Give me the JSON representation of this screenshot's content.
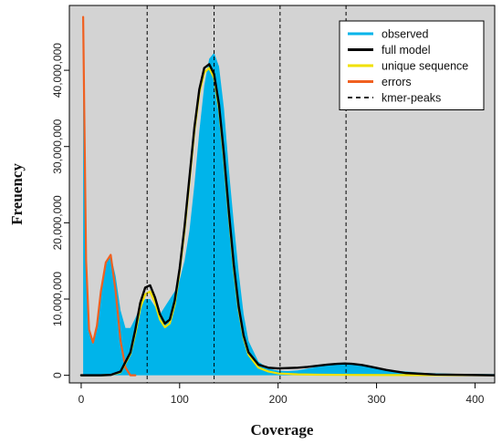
{
  "chart_data": {
    "type": "area",
    "title": "",
    "xlabel": "Coverage",
    "ylabel": "Freuency",
    "xlim": [
      -12,
      420
    ],
    "ylim": [
      -1000000,
      48500000
    ],
    "x_ticks": [
      0,
      100,
      200,
      300,
      400
    ],
    "x_tick_labels": [
      "0",
      "100",
      "200",
      "300",
      "400"
    ],
    "y_ticks": [
      0,
      10000000,
      20000000,
      30000000,
      40000000
    ],
    "y_tick_labels": [
      "0",
      "10,000,000",
      "20,000,000",
      "30,000,000",
      "40,000,000"
    ],
    "background_color": "#d3d3d3",
    "grid": false,
    "legend_position": "top-right",
    "kmer_peaks": [
      67,
      135,
      202,
      269
    ],
    "series": [
      {
        "name": "observed",
        "kind": "area",
        "color": "#00b4ea",
        "x": [
          2,
          3,
          5,
          8,
          12,
          16,
          20,
          25,
          30,
          35,
          40,
          45,
          50,
          55,
          60,
          65,
          70,
          75,
          80,
          85,
          90,
          95,
          100,
          105,
          110,
          115,
          120,
          125,
          130,
          135,
          140,
          145,
          150,
          155,
          160,
          165,
          170,
          180,
          190,
          200,
          210,
          220,
          240,
          260,
          270,
          280,
          300,
          320,
          350,
          380,
          420
        ],
        "y": [
          47000000,
          32000000,
          14000000,
          6000000,
          4400000,
          6500000,
          11000000,
          14500000,
          15800000,
          13000000,
          8500000,
          6200000,
          6200000,
          7500000,
          9000000,
          10000000,
          10000000,
          9000000,
          8000000,
          9000000,
          10000000,
          11000000,
          12500000,
          15000000,
          19000000,
          25000000,
          32000000,
          38000000,
          41500000,
          42300000,
          40500000,
          35000000,
          27000000,
          20000000,
          13500000,
          8000000,
          4500000,
          1800000,
          900000,
          600000,
          550000,
          650000,
          1100000,
          1450000,
          1500000,
          1400000,
          1000000,
          600000,
          300000,
          200000,
          150000
        ]
      },
      {
        "name": "full model",
        "kind": "line",
        "color": "#000000",
        "x": [
          0,
          20,
          30,
          40,
          50,
          55,
          60,
          65,
          70,
          75,
          80,
          85,
          90,
          95,
          100,
          105,
          110,
          115,
          120,
          125,
          130,
          135,
          140,
          145,
          150,
          155,
          160,
          165,
          170,
          180,
          190,
          200,
          210,
          220,
          230,
          240,
          250,
          260,
          268,
          275,
          285,
          295,
          310,
          330,
          360,
          420
        ],
        "y": [
          0,
          0,
          50000,
          500000,
          3000000,
          6000000,
          9500000,
          11500000,
          11800000,
          10200000,
          8000000,
          6800000,
          7300000,
          9800000,
          14000000,
          19500000,
          26000000,
          32500000,
          37500000,
          40300000,
          40800000,
          39500000,
          35500000,
          29000000,
          21500000,
          14500000,
          9000000,
          5200000,
          3000000,
          1400000,
          1000000,
          900000,
          950000,
          1000000,
          1100000,
          1250000,
          1400000,
          1500000,
          1550000,
          1500000,
          1350000,
          1100000,
          700000,
          300000,
          100000,
          0
        ]
      },
      {
        "name": "unique sequence",
        "kind": "line",
        "color": "#f0e000",
        "x": [
          0,
          20,
          30,
          40,
          50,
          55,
          60,
          65,
          70,
          75,
          80,
          85,
          90,
          95,
          100,
          105,
          110,
          115,
          120,
          125,
          130,
          135,
          140,
          145,
          150,
          155,
          160,
          165,
          170,
          180,
          190,
          200,
          220,
          240,
          260,
          280,
          320,
          420
        ],
        "y": [
          0,
          0,
          50000,
          400000,
          2800000,
          5500000,
          8800000,
          10600000,
          11000000,
          9500000,
          7300000,
          6300000,
          6800000,
          9300000,
          13600000,
          19000000,
          25500000,
          32000000,
          37000000,
          39700000,
          40300000,
          39000000,
          35000000,
          28500000,
          21000000,
          14000000,
          8600000,
          4900000,
          2700000,
          1000000,
          500000,
          250000,
          120000,
          80000,
          60000,
          50000,
          30000,
          10000
        ]
      },
      {
        "name": "errors",
        "kind": "line",
        "color": "#f06020",
        "x": [
          2,
          3,
          5,
          8,
          12,
          16,
          20,
          25,
          30,
          35,
          40,
          45,
          50,
          55
        ],
        "y": [
          47000000,
          36000000,
          15000000,
          6000000,
          4300000,
          6500000,
          11000000,
          14800000,
          15800000,
          11000000,
          4500000,
          1000000,
          0,
          0
        ]
      },
      {
        "name": "kmer-peaks",
        "kind": "vline",
        "color": "#000000",
        "x": [
          67,
          135,
          202,
          269
        ]
      }
    ]
  }
}
